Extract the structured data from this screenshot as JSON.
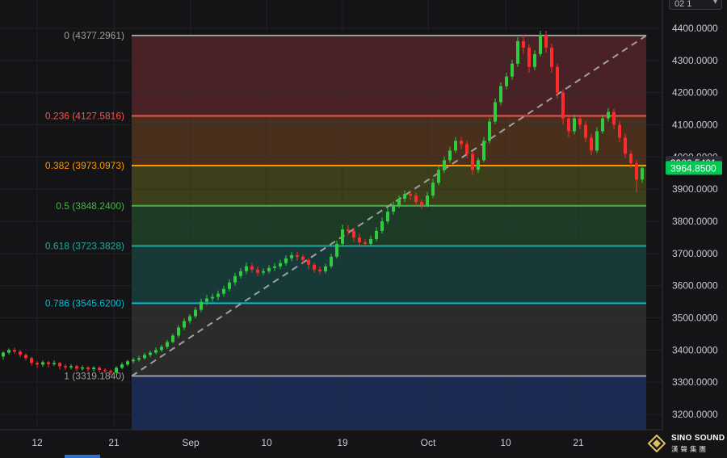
{
  "toolbar": {
    "interval_label": "02 1",
    "dropdown_icon": "chevron-down-icon"
  },
  "chart_data": {
    "type": "candlestick",
    "title": "",
    "xlabel": "",
    "ylabel": "",
    "ylim": [
      3160,
      4420
    ],
    "grid": true,
    "x_tick_labels": [
      "12",
      "21",
      "Sep",
      "10",
      "19",
      "Oct",
      "10",
      "21"
    ],
    "y_tick_labels": [
      "4400.0000",
      "4300.0000",
      "4200.0000",
      "4100.0000",
      "4000.0000",
      "3900.0000",
      "3800.0000",
      "3700.0000",
      "3600.0000",
      "3500.0000",
      "3400.0000",
      "3300.0000",
      "3200.0000"
    ],
    "y_ticks": [
      4400,
      4300,
      4200,
      4100,
      4000,
      3900,
      3800,
      3700,
      3600,
      3500,
      3400,
      3300,
      3200
    ],
    "fibonacci_levels": [
      {
        "ratio": "0",
        "price": 4377.2961,
        "label": "0 (4377.2961)",
        "color": "#9e9e9e"
      },
      {
        "ratio": "0.236",
        "price": 4127.5816,
        "label": "0.236 (4127.5816)",
        "color": "#ef5350"
      },
      {
        "ratio": "0.382",
        "price": 3973.0973,
        "label": "0.382 (3973.0973)",
        "color": "#ff9800"
      },
      {
        "ratio": "0.5",
        "price": 3848.24,
        "label": "0.5 (3848.2400)",
        "color": "#4caf50"
      },
      {
        "ratio": "0.618",
        "price": 3723.3828,
        "label": "0.618 (3723.3828)",
        "color": "#26a69a"
      },
      {
        "ratio": "0.786",
        "price": 3545.62,
        "label": "0.786 (3545.6200)",
        "color": "#00bcd4"
      },
      {
        "ratio": "1",
        "price": 3319.184,
        "label": "1 (3319.1840)",
        "color": "#9e9e9e"
      }
    ],
    "price_labels": [
      {
        "text": "3980.5481",
        "value": 3980.5481,
        "bg": "#2a2d35",
        "fg": "#ffffff"
      },
      {
        "text": "3964.8500",
        "value": 3964.85,
        "bg": "#00c853",
        "fg": "#ffffff"
      }
    ],
    "candles": [
      [
        3380,
        3392,
        3370,
        3396
      ],
      [
        3392,
        3400,
        3386,
        3405
      ],
      [
        3400,
        3395,
        3388,
        3408
      ],
      [
        3395,
        3385,
        3378,
        3400
      ],
      [
        3385,
        3375,
        3368,
        3390
      ],
      [
        3375,
        3360,
        3352,
        3380
      ],
      [
        3360,
        3355,
        3345,
        3365
      ],
      [
        3355,
        3362,
        3348,
        3368
      ],
      [
        3362,
        3356,
        3346,
        3366
      ],
      [
        3356,
        3360,
        3350,
        3368
      ],
      [
        3360,
        3350,
        3340,
        3364
      ],
      [
        3350,
        3346,
        3338,
        3356
      ],
      [
        3346,
        3350,
        3340,
        3356
      ],
      [
        3350,
        3342,
        3334,
        3354
      ],
      [
        3342,
        3346,
        3336,
        3352
      ],
      [
        3346,
        3340,
        3332,
        3350
      ],
      [
        3340,
        3345,
        3334,
        3350
      ],
      [
        3345,
        3338,
        3330,
        3350
      ],
      [
        3338,
        3335,
        3328,
        3344
      ],
      [
        3335,
        3330,
        3322,
        3340
      ],
      [
        3330,
        3345,
        3325,
        3350
      ],
      [
        3345,
        3355,
        3340,
        3362
      ],
      [
        3355,
        3365,
        3350,
        3370
      ],
      [
        3365,
        3370,
        3358,
        3376
      ],
      [
        3370,
        3375,
        3364,
        3382
      ],
      [
        3375,
        3385,
        3370,
        3392
      ],
      [
        3385,
        3392,
        3378,
        3398
      ],
      [
        3392,
        3400,
        3386,
        3408
      ],
      [
        3400,
        3410,
        3394,
        3416
      ],
      [
        3410,
        3425,
        3404,
        3432
      ],
      [
        3425,
        3445,
        3420,
        3452
      ],
      [
        3445,
        3470,
        3438,
        3478
      ],
      [
        3470,
        3490,
        3462,
        3498
      ],
      [
        3490,
        3505,
        3482,
        3512
      ],
      [
        3505,
        3525,
        3498,
        3534
      ],
      [
        3525,
        3550,
        3518,
        3560
      ],
      [
        3550,
        3560,
        3540,
        3572
      ],
      [
        3560,
        3565,
        3550,
        3575
      ],
      [
        3565,
        3575,
        3555,
        3585
      ],
      [
        3575,
        3590,
        3566,
        3600
      ],
      [
        3590,
        3610,
        3582,
        3620
      ],
      [
        3610,
        3630,
        3600,
        3640
      ],
      [
        3630,
        3645,
        3622,
        3655
      ],
      [
        3645,
        3660,
        3636,
        3672
      ],
      [
        3660,
        3650,
        3640,
        3672
      ],
      [
        3650,
        3640,
        3630,
        3660
      ],
      [
        3640,
        3645,
        3632,
        3654
      ],
      [
        3645,
        3655,
        3638,
        3664
      ],
      [
        3655,
        3660,
        3646,
        3670
      ],
      [
        3660,
        3670,
        3652,
        3680
      ],
      [
        3670,
        3685,
        3662,
        3694
      ],
      [
        3685,
        3695,
        3676,
        3704
      ],
      [
        3695,
        3690,
        3678,
        3706
      ],
      [
        3690,
        3680,
        3668,
        3698
      ],
      [
        3680,
        3665,
        3650,
        3686
      ],
      [
        3665,
        3650,
        3640,
        3672
      ],
      [
        3650,
        3645,
        3636,
        3660
      ],
      [
        3645,
        3660,
        3638,
        3668
      ],
      [
        3660,
        3690,
        3654,
        3700
      ],
      [
        3690,
        3730,
        3684,
        3740
      ],
      [
        3730,
        3775,
        3722,
        3790
      ],
      [
        3775,
        3770,
        3758,
        3788
      ],
      [
        3770,
        3750,
        3736,
        3780
      ],
      [
        3750,
        3735,
        3722,
        3762
      ],
      [
        3735,
        3730,
        3720,
        3746
      ],
      [
        3730,
        3745,
        3724,
        3756
      ],
      [
        3745,
        3770,
        3738,
        3782
      ],
      [
        3770,
        3800,
        3762,
        3812
      ],
      [
        3800,
        3830,
        3792,
        3842
      ],
      [
        3830,
        3850,
        3820,
        3862
      ],
      [
        3850,
        3870,
        3842,
        3880
      ],
      [
        3870,
        3885,
        3860,
        3896
      ],
      [
        3885,
        3880,
        3866,
        3896
      ],
      [
        3880,
        3860,
        3846,
        3890
      ],
      [
        3860,
        3850,
        3838,
        3868
      ],
      [
        3850,
        3880,
        3844,
        3892
      ],
      [
        3880,
        3920,
        3872,
        3932
      ],
      [
        3920,
        3960,
        3912,
        3972
      ],
      [
        3960,
        3990,
        3950,
        4002
      ],
      [
        3990,
        4020,
        3982,
        4032
      ],
      [
        4020,
        4050,
        4012,
        4062
      ],
      [
        4050,
        4040,
        4024,
        4062
      ],
      [
        4040,
        4010,
        3996,
        4050
      ],
      [
        4010,
        3960,
        3944,
        4018
      ],
      [
        3960,
        3990,
        3950,
        3998
      ],
      [
        3990,
        4050,
        3984,
        4062
      ],
      [
        4050,
        4110,
        4042,
        4122
      ],
      [
        4110,
        4170,
        4102,
        4182
      ],
      [
        4170,
        4220,
        4160,
        4232
      ],
      [
        4220,
        4250,
        4210,
        4262
      ],
      [
        4250,
        4290,
        4240,
        4302
      ],
      [
        4290,
        4360,
        4280,
        4372
      ],
      [
        4360,
        4340,
        4320,
        4380
      ],
      [
        4340,
        4280,
        4262,
        4350
      ],
      [
        4280,
        4320,
        4270,
        4332
      ],
      [
        4320,
        4380,
        4312,
        4392
      ],
      [
        4380,
        4340,
        4324,
        4392
      ],
      [
        4340,
        4280,
        4262,
        4352
      ],
      [
        4280,
        4200,
        4182,
        4290
      ],
      [
        4200,
        4120,
        4100,
        4210
      ],
      [
        4120,
        4080,
        4062,
        4132
      ],
      [
        4080,
        4120,
        4070,
        4132
      ],
      [
        4120,
        4100,
        4086,
        4132
      ],
      [
        4100,
        4060,
        4046,
        4112
      ],
      [
        4060,
        4020,
        4006,
        4072
      ],
      [
        4020,
        4080,
        4012,
        4092
      ],
      [
        4080,
        4120,
        4072,
        4132
      ],
      [
        4120,
        4140,
        4110,
        4152
      ],
      [
        4140,
        4100,
        4086,
        4150
      ],
      [
        4100,
        4060,
        4046,
        4112
      ],
      [
        4060,
        4010,
        3996,
        4072
      ],
      [
        4010,
        3980,
        3966,
        4020
      ],
      [
        3980,
        3930,
        3890,
        3990
      ],
      [
        3930,
        3965,
        3920,
        3976
      ]
    ]
  },
  "watermark": {
    "brand": "SINO SOUND",
    "brand_cn": "漢聲集團"
  }
}
